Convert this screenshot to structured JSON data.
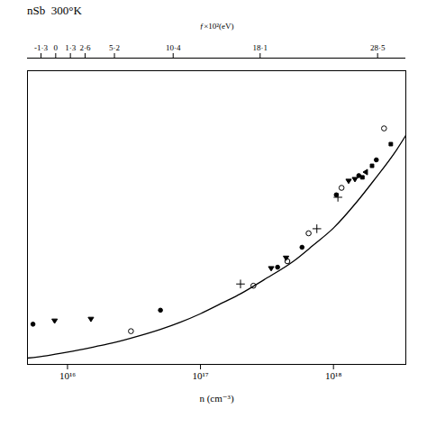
{
  "chart_data": {
    "type": "scatter",
    "title": "nSb  300°K",
    "xlabel": "n (cm⁻³)",
    "x2label": "ƒ×10²(eV)",
    "log": "x",
    "tick_labels": "x",
    "xlim": [
      5000000000000000.0,
      3.5e+18
    ],
    "xticks": [
      {
        "value": 1e+16,
        "label": "10¹⁶"
      },
      {
        "value": 1e+17,
        "label": "10¹⁷"
      },
      {
        "value": 1e+18,
        "label": "10¹⁸"
      }
    ],
    "ylim": [
      0.08,
      0.92
    ],
    "x2lim": [
      -2.5,
      31.0
    ],
    "x2ticks": [
      {
        "value": -1.3,
        "label": "-1·3"
      },
      0,
      {
        "value": 1.3,
        "label": "1·3"
      },
      {
        "value": 2.6,
        "label": "2·6"
      },
      {
        "value": 5.2,
        "label": "5·2"
      },
      {
        "value": 10.4,
        "label": "10·4"
      },
      {
        "value": 18.1,
        "label": "18·1"
      },
      {
        "value": 28.5,
        "label": "28·5"
      }
    ],
    "series": [
      {
        "type": "line",
        "color": "#000000",
        "line_style": "solid",
        "x": [
          5000000000000000.0,
          7000000000000000.0,
          1e+16,
          1.5e+16,
          2e+16,
          3e+16,
          5e+16,
          7e+16,
          1e+17,
          1.5e+17,
          2e+17,
          3e+17,
          5e+17,
          7e+17,
          1e+18,
          1.5e+18,
          2e+18,
          3e+18,
          3.5e+18
        ],
        "values": [
          0.098,
          0.105,
          0.115,
          0.128,
          0.138,
          0.155,
          0.18,
          0.2,
          0.225,
          0.258,
          0.282,
          0.322,
          0.375,
          0.42,
          0.47,
          0.545,
          0.605,
          0.695,
          0.735
        ]
      },
      {
        "type": "scatter",
        "marker": "circle_open",
        "color": "#000000",
        "x": [
          3e+16,
          2.5e+17,
          4.5e+17,
          6.5e+17,
          1.15e+18,
          2.4e+18
        ],
        "values": [
          0.175,
          0.305,
          0.375,
          0.455,
          0.585,
          0.755
        ]
      },
      {
        "type": "scatter",
        "marker": "circle",
        "color": "#000000",
        "x": [
          5500000000000000.0,
          5e+16,
          3.8e+17,
          5.8e+17,
          1.05e+18,
          1.55e+18,
          2.1e+18
        ],
        "values": [
          0.195,
          0.235,
          0.358,
          0.415,
          0.565,
          0.62,
          0.665
        ]
      },
      {
        "type": "scatter",
        "marker": "triangle_down",
        "color": "#000000",
        "x": [
          8000000000000000.0,
          1.5e+16,
          3.4e+17,
          4.4e+17,
          1.3e+18,
          1.45e+18
        ],
        "values": [
          0.205,
          0.21,
          0.355,
          0.385,
          0.605,
          0.61
        ]
      },
      {
        "type": "scatter",
        "marker": "plus",
        "color": "#000000",
        "x": [
          2e+17,
          7.5e+17,
          1.08e+18
        ],
        "values": [
          0.31,
          0.468,
          0.558
        ]
      },
      {
        "type": "scatter",
        "marker": "triangle_left",
        "color": "#000000",
        "x": [
          1.75e+18
        ],
        "values": [
          0.63
        ]
      },
      {
        "type": "scatter",
        "marker": "square",
        "color": "#000000",
        "x": [
          1.65e+18,
          1.95e+18,
          2.7e+18
        ],
        "values": [
          0.615,
          0.648,
          0.71
        ]
      }
    ]
  }
}
